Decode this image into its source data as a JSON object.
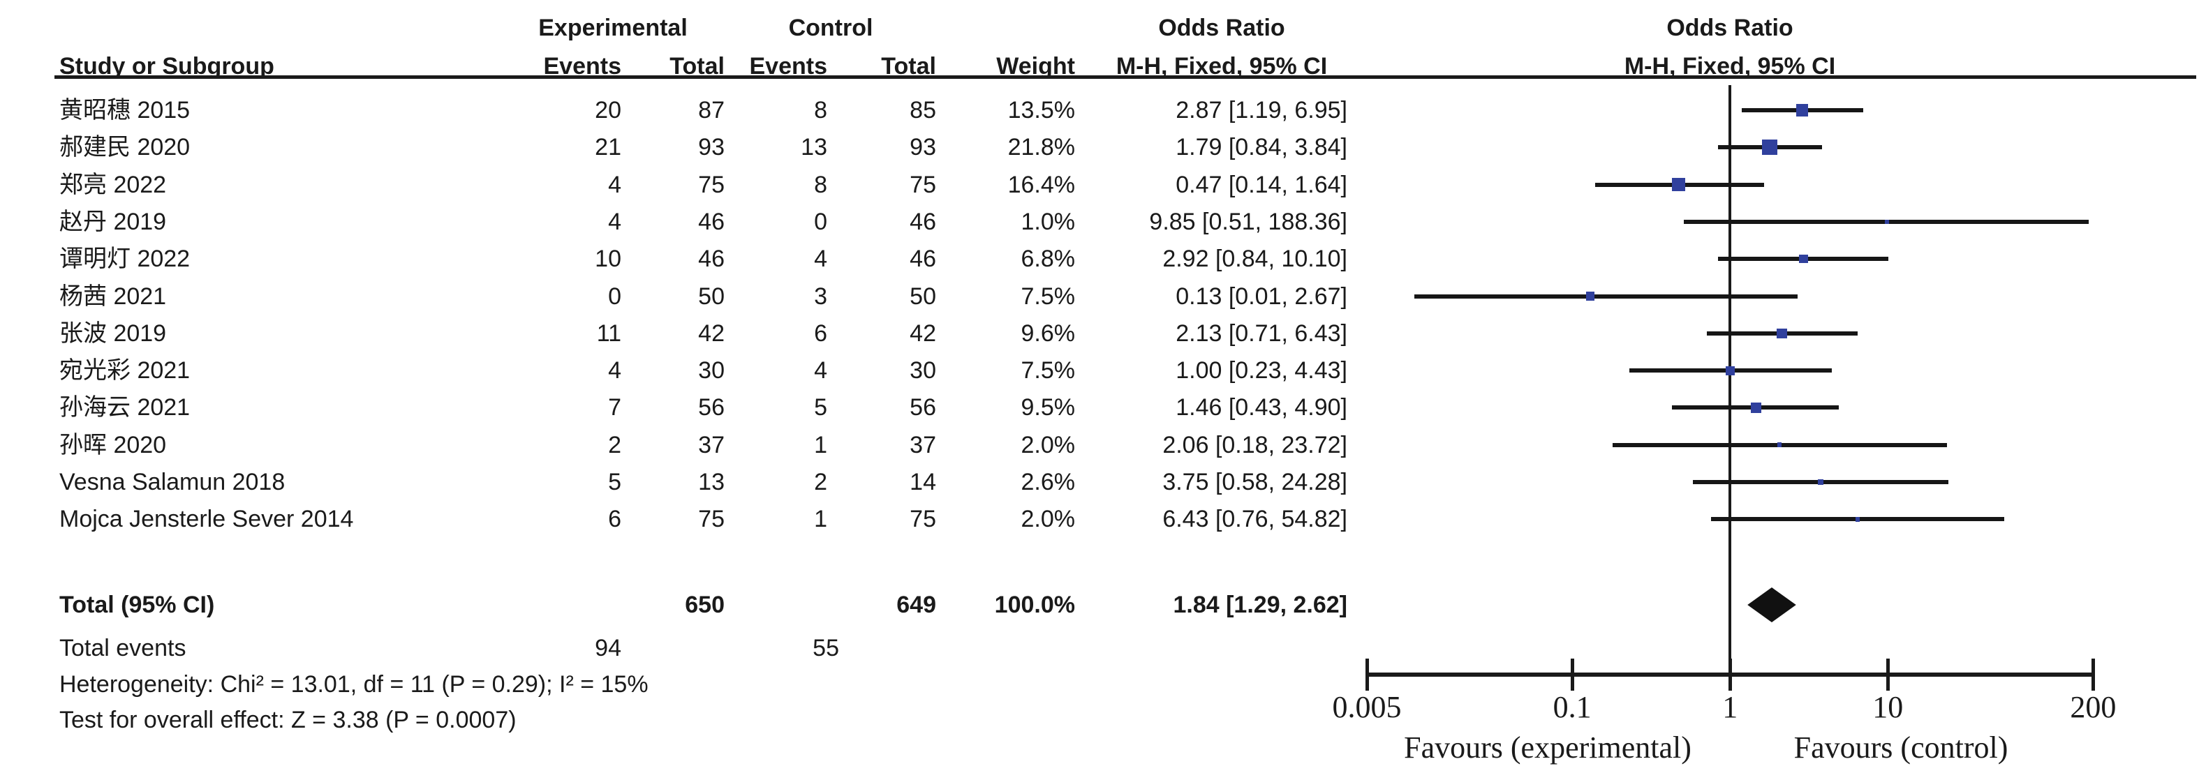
{
  "header": {
    "group_experimental": "Experimental",
    "group_control": "Control",
    "group_odds_ratio_text": "Odds Ratio",
    "group_odds_ratio_plot": "Odds Ratio",
    "col_study": "Study or Subgroup",
    "col_events_exp": "Events",
    "col_total_exp": "Total",
    "col_events_ctrl": "Events",
    "col_total_ctrl": "Total",
    "col_weight": "Weight",
    "col_mh_text": "M-H, Fixed, 95% CI",
    "col_mh_plot": "M-H, Fixed, 95% CI"
  },
  "chart_data": {
    "type": "forest",
    "effect_measure": "Odds Ratio",
    "method": "M-H, Fixed, 95% CI",
    "studies": [
      {
        "name": "黄昭穗 2015",
        "events_exp": 20,
        "total_exp": 87,
        "events_ctrl": 8,
        "total_ctrl": 85,
        "weight": "13.5%",
        "weight_value": 13.5,
        "or": 2.87,
        "ci_low": 1.19,
        "ci_high": 6.95,
        "or_label": "2.87 [1.19, 6.95]"
      },
      {
        "name": "郝建民 2020",
        "events_exp": 21,
        "total_exp": 93,
        "events_ctrl": 13,
        "total_ctrl": 93,
        "weight": "21.8%",
        "weight_value": 21.8,
        "or": 1.79,
        "ci_low": 0.84,
        "ci_high": 3.84,
        "or_label": "1.79 [0.84, 3.84]"
      },
      {
        "name": "郑亮 2022",
        "events_exp": 4,
        "total_exp": 75,
        "events_ctrl": 8,
        "total_ctrl": 75,
        "weight": "16.4%",
        "weight_value": 16.4,
        "or": 0.47,
        "ci_low": 0.14,
        "ci_high": 1.64,
        "or_label": "0.47 [0.14, 1.64]"
      },
      {
        "name": "赵丹 2019",
        "events_exp": 4,
        "total_exp": 46,
        "events_ctrl": 0,
        "total_ctrl": 46,
        "weight": "1.0%",
        "weight_value": 1.0,
        "or": 9.85,
        "ci_low": 0.51,
        "ci_high": 188.36,
        "or_label": "9.85 [0.51, 188.36]"
      },
      {
        "name": "谭明灯 2022",
        "events_exp": 10,
        "total_exp": 46,
        "events_ctrl": 4,
        "total_ctrl": 46,
        "weight": "6.8%",
        "weight_value": 6.8,
        "or": 2.92,
        "ci_low": 0.84,
        "ci_high": 10.1,
        "or_label": "2.92 [0.84, 10.10]"
      },
      {
        "name": "杨茜 2021",
        "events_exp": 0,
        "total_exp": 50,
        "events_ctrl": 3,
        "total_ctrl": 50,
        "weight": "7.5%",
        "weight_value": 7.5,
        "or": 0.13,
        "ci_low": 0.01,
        "ci_high": 2.67,
        "or_label": "0.13 [0.01, 2.67]"
      },
      {
        "name": "张波 2019",
        "events_exp": 11,
        "total_exp": 42,
        "events_ctrl": 6,
        "total_ctrl": 42,
        "weight": "9.6%",
        "weight_value": 9.6,
        "or": 2.13,
        "ci_low": 0.71,
        "ci_high": 6.43,
        "or_label": "2.13 [0.71, 6.43]"
      },
      {
        "name": "宛光彩 2021",
        "events_exp": 4,
        "total_exp": 30,
        "events_ctrl": 4,
        "total_ctrl": 30,
        "weight": "7.5%",
        "weight_value": 7.5,
        "or": 1.0,
        "ci_low": 0.23,
        "ci_high": 4.43,
        "or_label": "1.00 [0.23, 4.43]"
      },
      {
        "name": "孙海云 2021",
        "events_exp": 7,
        "total_exp": 56,
        "events_ctrl": 5,
        "total_ctrl": 56,
        "weight": "9.5%",
        "weight_value": 9.5,
        "or": 1.46,
        "ci_low": 0.43,
        "ci_high": 4.9,
        "or_label": "1.46 [0.43, 4.90]"
      },
      {
        "name": "孙晖 2020",
        "events_exp": 2,
        "total_exp": 37,
        "events_ctrl": 1,
        "total_ctrl": 37,
        "weight": "2.0%",
        "weight_value": 2.0,
        "or": 2.06,
        "ci_low": 0.18,
        "ci_high": 23.72,
        "or_label": "2.06 [0.18, 23.72]"
      },
      {
        "name": "Vesna Salamun 2018",
        "events_exp": 5,
        "total_exp": 13,
        "events_ctrl": 2,
        "total_ctrl": 14,
        "weight": "2.6%",
        "weight_value": 2.6,
        "or": 3.75,
        "ci_low": 0.58,
        "ci_high": 24.28,
        "or_label": "3.75 [0.58, 24.28]"
      },
      {
        "name": "Mojca Jensterle Sever 2014",
        "events_exp": 6,
        "total_exp": 75,
        "events_ctrl": 1,
        "total_ctrl": 75,
        "weight": "2.0%",
        "weight_value": 2.0,
        "or": 6.43,
        "ci_low": 0.76,
        "ci_high": 54.82,
        "or_label": "6.43 [0.76, 54.82]"
      }
    ],
    "total": {
      "label": "Total (95% CI)",
      "total_exp": 650,
      "total_ctrl": 649,
      "weight": "100.0%",
      "or": 1.84,
      "ci_low": 1.29,
      "ci_high": 2.62,
      "or_label": "1.84 [1.29, 2.62]"
    },
    "total_events": {
      "label": "Total events",
      "exp": 94,
      "ctrl": 55
    },
    "heterogeneity": "Heterogeneity: Chi² = 13.01, df = 11 (P = 0.29); I² = 15%",
    "overall_effect": "Test for overall effect: Z = 3.38 (P = 0.0007)",
    "axis": {
      "scale": "log",
      "min": 0.005,
      "max": 200,
      "null_line": 1,
      "ticks": [
        0.005,
        0.1,
        1,
        10,
        200
      ],
      "tick_labels": [
        "0.005",
        "0.1",
        "1",
        "10",
        "200"
      ],
      "favours_left": "Favours (experimental)",
      "favours_right": "Favours (control)"
    },
    "colors": {
      "square": "#30409d",
      "ci_line": "#161616",
      "diamond": "#111111",
      "text": "#1a1a1a"
    }
  }
}
